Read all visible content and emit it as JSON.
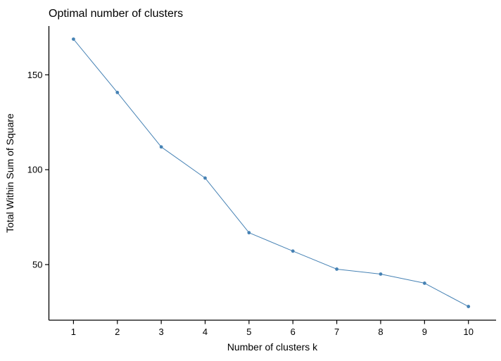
{
  "figure": {
    "background": "#ffffff"
  },
  "chart_data": {
    "type": "line",
    "title": "Optimal number of clusters",
    "xlabel": "Number of clusters k",
    "ylabel": "Total Within Sum of Square",
    "x": [
      1,
      2,
      3,
      4,
      5,
      6,
      7,
      8,
      9,
      10
    ],
    "values": [
      168.8,
      140.7,
      112.0,
      95.6,
      66.8,
      57.1,
      47.6,
      45.0,
      40.2,
      27.9
    ],
    "x_ticks": [
      1,
      2,
      3,
      4,
      5,
      6,
      7,
      8,
      9,
      10
    ],
    "y_ticks": [
      50,
      100,
      150
    ],
    "xlim": [
      0.44,
      10.63
    ],
    "ylim": [
      20.7,
      175.7
    ],
    "grid": false,
    "legend": "none",
    "line_color": "#4682B4",
    "marker": "circle",
    "axis_color": "#000000",
    "text_color": "#000000"
  }
}
